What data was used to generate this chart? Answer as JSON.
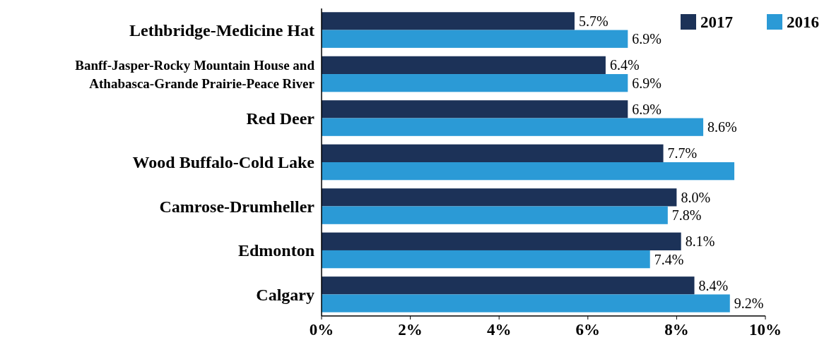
{
  "chart_data": {
    "type": "bar",
    "orientation": "horizontal",
    "categories": [
      "Lethbridge-Medicine Hat",
      "Banff-Jasper-Rocky Mountain House and Athabasca-Grande Prairie-Peace River",
      "Red Deer",
      "Wood Buffalo-Cold Lake",
      "Camrose-Drumheller",
      "Edmonton",
      "Calgary"
    ],
    "series": [
      {
        "name": "2017",
        "color": "#1c3258",
        "values": [
          5.7,
          6.4,
          6.9,
          7.7,
          8.0,
          8.1,
          8.4
        ],
        "value_labels": [
          "5.7%",
          "6.4%",
          "6.9%",
          "7.7%",
          "8.0%",
          "8.1%",
          "8.4%"
        ]
      },
      {
        "name": "2016",
        "color": "#2b9ad6",
        "values": [
          6.9,
          6.9,
          8.6,
          9.3,
          7.8,
          7.4,
          9.2
        ],
        "value_labels": [
          "6.9%",
          "6.9%",
          "8.6%",
          null,
          "7.8%",
          "7.4%",
          "9.2%"
        ]
      }
    ],
    "xlim": [
      0,
      10
    ],
    "xticks": [
      {
        "value": 0,
        "label": "0%"
      },
      {
        "value": 2,
        "label": "2%"
      },
      {
        "value": 4,
        "label": "4%"
      },
      {
        "value": 6,
        "label": "6%"
      },
      {
        "value": 8,
        "label": "8%"
      },
      {
        "value": 10,
        "label": "10%"
      }
    ],
    "legend": "top right",
    "grid": false
  }
}
